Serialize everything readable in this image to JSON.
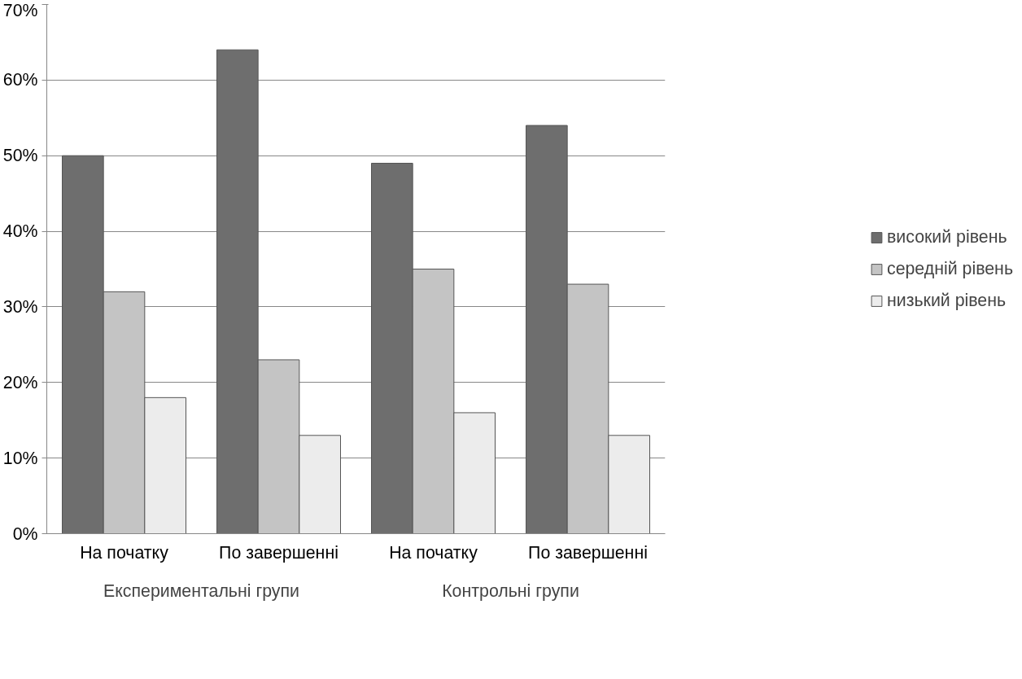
{
  "chart_data": {
    "type": "bar",
    "categories": [
      "На початку",
      "По завершенні",
      "На початку",
      "По завершенні"
    ],
    "series": [
      {
        "name": "високий рівень",
        "color": "#6e6e6e",
        "values": [
          50,
          64,
          49,
          54
        ]
      },
      {
        "name": "середній рівень",
        "color": "#c4c4c4",
        "values": [
          32,
          23,
          35,
          33
        ]
      },
      {
        "name": "низький рівень",
        "color": "#ececec",
        "values": [
          18,
          13,
          16,
          13
        ]
      }
    ],
    "ylim": [
      0,
      70
    ],
    "yticks": [
      {
        "value": 0,
        "label": "0%"
      },
      {
        "value": 10,
        "label": "10%"
      },
      {
        "value": 20,
        "label": "20%"
      },
      {
        "value": 30,
        "label": "30%"
      },
      {
        "value": 40,
        "label": "40%"
      },
      {
        "value": 50,
        "label": "50%"
      },
      {
        "value": 60,
        "label": "60%"
      },
      {
        "value": 70,
        "label": "70%"
      }
    ],
    "annotations": [
      "Експериментальні групи",
      "Контрольні групи"
    ],
    "grid": "y",
    "legend": "right"
  }
}
